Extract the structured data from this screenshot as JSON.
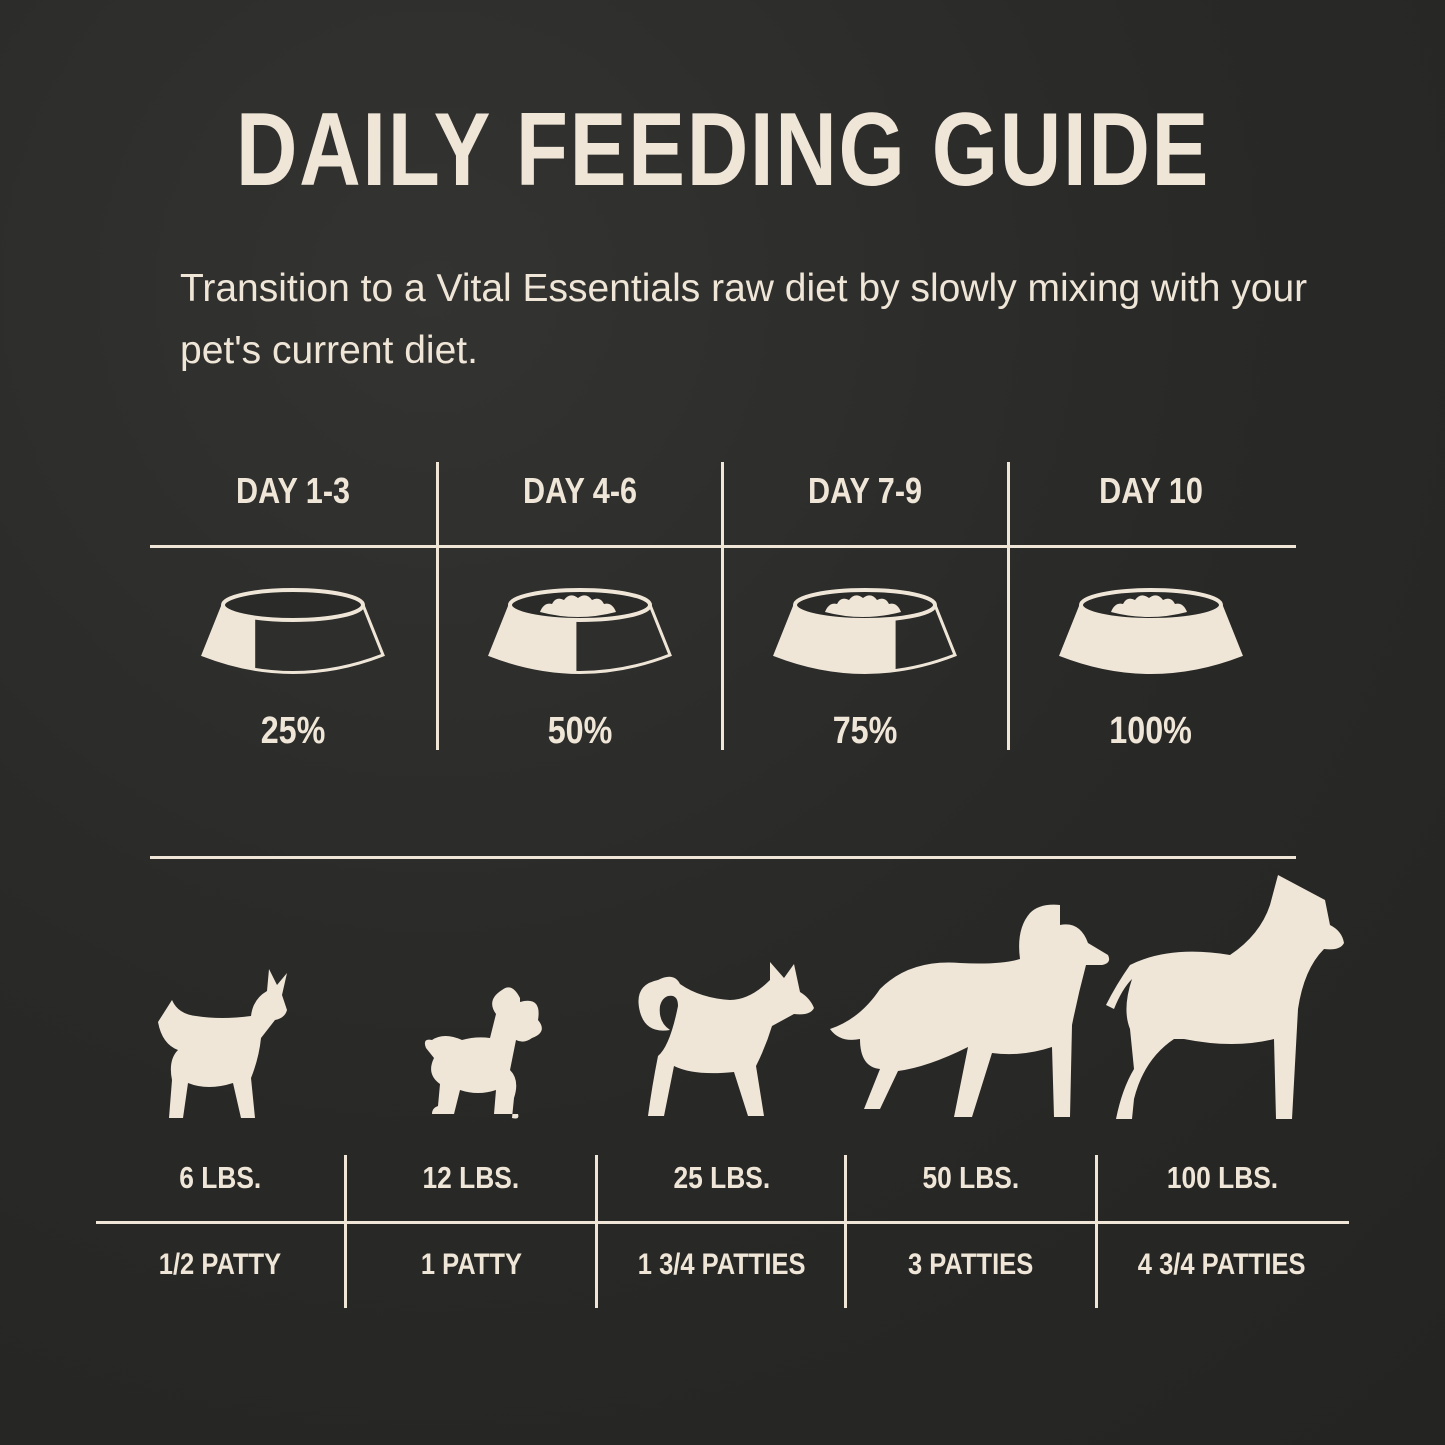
{
  "title": "DAILY FEEDING GUIDE",
  "subtitle": "Transition to a Vital Essentials raw diet by slowly mixing with your pet's current diet.",
  "colors": {
    "background": "#2a2a28",
    "foreground": "#efe6d8"
  },
  "transition": [
    {
      "day": "DAY 1-3",
      "percent": "25%",
      "fill": 0.25
    },
    {
      "day": "DAY 4-6",
      "percent": "50%",
      "fill": 0.5
    },
    {
      "day": "DAY 7-9",
      "percent": "75%",
      "fill": 0.75
    },
    {
      "day": "DAY 10",
      "percent": "100%",
      "fill": 1.0
    }
  ],
  "feeding": [
    {
      "icon": "chihuahua-icon",
      "weight": "6 LBS.",
      "amount": "1/2 PATTY"
    },
    {
      "icon": "poodle-icon",
      "weight": "12 LBS.",
      "amount": "1 PATTY"
    },
    {
      "icon": "shiba-icon",
      "weight": "25 LBS.",
      "amount": "1 3/4 PATTIES"
    },
    {
      "icon": "retriever-icon",
      "weight": "50 LBS.",
      "amount": "3 PATTIES"
    },
    {
      "icon": "great-dane-icon",
      "weight": "100 LBS.",
      "amount": "4 3/4 PATTIES"
    }
  ]
}
